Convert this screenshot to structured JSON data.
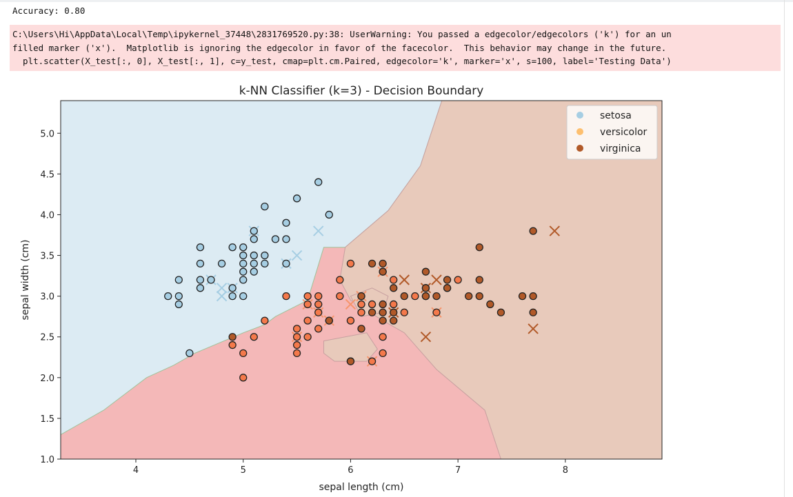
{
  "output": {
    "stdout": "Accuracy: 0.80",
    "stderr_lines": [
      "C:\\Users\\Hi\\AppData\\Local\\Temp\\ipykernel_37448\\2831769520.py:38: UserWarning: You passed a edgecolor/edgecolors ('k') for an un",
      "filled marker ('x').  Matplotlib is ignoring the edgecolor in favor of the facecolor.  This behavior may change in the future.",
      "  plt.scatter(X_test[:, 0], X_test[:, 1], c=y_test, cmap=plt.cm.Paired, edgecolor='k', marker='x', s=100, label='Testing Data')"
    ]
  },
  "chart_data": {
    "type": "scatter",
    "title": "k-NN Classifier (k=3) - Decision Boundary",
    "xlabel": "sepal length (cm)",
    "ylabel": "sepal width (cm)",
    "xlim": [
      3.3,
      8.9
    ],
    "ylim": [
      1.0,
      5.4
    ],
    "xticks": [
      4,
      5,
      6,
      7,
      8
    ],
    "yticks": [
      1.0,
      1.5,
      2.0,
      2.5,
      3.0,
      3.5,
      4.0,
      4.5,
      5.0
    ],
    "grid": false,
    "legend_position": "top-right",
    "colors": {
      "setosa": "#a6cee3",
      "versicolor": "#fdbf6f",
      "virginica": "#b15928",
      "region_setosa": "#dcebf3",
      "region_versicolor": "#f4b8b8",
      "region_virginica": "#e8cabb",
      "train_versicolor_fill": "#f4794b",
      "train_virginica_fill": "#b15928",
      "test_versicolor": "#f6946b"
    },
    "legend": [
      "setosa",
      "versicolor",
      "virginica"
    ],
    "regions": {
      "setosa": [
        [
          3.3,
          1.3
        ],
        [
          3.7,
          1.6
        ],
        [
          4.1,
          2.0
        ],
        [
          4.35,
          2.15
        ],
        [
          4.55,
          2.3
        ],
        [
          5.0,
          2.55
        ],
        [
          5.2,
          2.65
        ],
        [
          5.3,
          2.75
        ],
        [
          5.6,
          2.95
        ],
        [
          5.75,
          3.6
        ],
        [
          5.95,
          3.6
        ],
        [
          6.35,
          4.05
        ],
        [
          6.65,
          4.6
        ],
        [
          6.85,
          5.4
        ],
        [
          3.3,
          5.4
        ]
      ],
      "virginica": [
        [
          5.95,
          3.6
        ],
        [
          6.35,
          4.05
        ],
        [
          6.65,
          4.6
        ],
        [
          6.85,
          5.4
        ],
        [
          8.9,
          5.4
        ],
        [
          8.9,
          1.0
        ],
        [
          7.4,
          1.0
        ],
        [
          7.25,
          1.6
        ],
        [
          6.8,
          2.1
        ],
        [
          6.5,
          2.55
        ],
        [
          6.3,
          2.7
        ],
        [
          6.0,
          2.95
        ],
        [
          5.9,
          3.2
        ]
      ],
      "virginica_islands": [
        [
          [
            5.75,
            2.45
          ],
          [
            6.15,
            2.55
          ],
          [
            6.25,
            2.35
          ],
          [
            6.15,
            2.2
          ],
          [
            5.85,
            2.2
          ],
          [
            5.75,
            2.3
          ]
        ],
        [
          [
            6.0,
            3.0
          ],
          [
            6.2,
            3.1
          ],
          [
            6.35,
            3.0
          ],
          [
            6.3,
            2.8
          ],
          [
            6.1,
            2.75
          ]
        ]
      ]
    },
    "series": [
      {
        "name": "setosa",
        "marker": "o",
        "points": [
          [
            4.3,
            3.0
          ],
          [
            4.4,
            2.9
          ],
          [
            4.4,
            3.0
          ],
          [
            4.4,
            3.2
          ],
          [
            4.5,
            2.3
          ],
          [
            4.6,
            3.1
          ],
          [
            4.6,
            3.2
          ],
          [
            4.6,
            3.4
          ],
          [
            4.6,
            3.6
          ],
          [
            4.7,
            3.2
          ],
          [
            4.8,
            3.4
          ],
          [
            4.9,
            3.0
          ],
          [
            4.9,
            3.1
          ],
          [
            4.9,
            3.6
          ],
          [
            5.0,
            3.0
          ],
          [
            5.0,
            3.2
          ],
          [
            5.0,
            3.3
          ],
          [
            5.0,
            3.4
          ],
          [
            5.0,
            3.5
          ],
          [
            5.0,
            3.6
          ],
          [
            5.1,
            3.3
          ],
          [
            5.1,
            3.4
          ],
          [
            5.1,
            3.5
          ],
          [
            5.1,
            3.7
          ],
          [
            5.1,
            3.8
          ],
          [
            5.2,
            3.4
          ],
          [
            5.2,
            3.5
          ],
          [
            5.2,
            4.1
          ],
          [
            5.3,
            3.7
          ],
          [
            5.4,
            3.4
          ],
          [
            5.4,
            3.7
          ],
          [
            5.4,
            3.9
          ],
          [
            5.5,
            4.2
          ],
          [
            5.7,
            4.4
          ],
          [
            5.8,
            4.0
          ]
        ]
      },
      {
        "name": "versicolor",
        "marker": "o",
        "points": [
          [
            4.9,
            2.4
          ],
          [
            5.0,
            2.0
          ],
          [
            5.0,
            2.3
          ],
          [
            5.1,
            2.5
          ],
          [
            5.2,
            2.7
          ],
          [
            5.4,
            3.0
          ],
          [
            5.5,
            2.3
          ],
          [
            5.5,
            2.4
          ],
          [
            5.5,
            2.5
          ],
          [
            5.5,
            2.6
          ],
          [
            5.6,
            2.5
          ],
          [
            5.6,
            2.7
          ],
          [
            5.6,
            2.9
          ],
          [
            5.6,
            3.0
          ],
          [
            5.7,
            2.6
          ],
          [
            5.7,
            2.8
          ],
          [
            5.7,
            2.9
          ],
          [
            5.7,
            3.0
          ],
          [
            5.8,
            2.7
          ],
          [
            5.9,
            3.0
          ],
          [
            5.9,
            3.2
          ],
          [
            6.0,
            2.2
          ],
          [
            6.0,
            2.7
          ],
          [
            6.0,
            3.4
          ],
          [
            6.1,
            2.8
          ],
          [
            6.1,
            2.9
          ],
          [
            6.1,
            3.0
          ],
          [
            6.2,
            2.2
          ],
          [
            6.2,
            2.9
          ],
          [
            6.3,
            2.3
          ],
          [
            6.3,
            2.5
          ],
          [
            6.3,
            3.3
          ],
          [
            6.4,
            2.9
          ],
          [
            6.4,
            3.2
          ],
          [
            6.5,
            2.8
          ],
          [
            6.6,
            3.0
          ],
          [
            6.7,
            3.0
          ],
          [
            6.7,
            3.1
          ],
          [
            6.8,
            2.8
          ],
          [
            6.9,
            3.1
          ],
          [
            7.0,
            3.2
          ]
        ]
      },
      {
        "name": "virginica",
        "marker": "o",
        "points": [
          [
            4.9,
            2.5
          ],
          [
            5.8,
            2.7
          ],
          [
            6.0,
            2.2
          ],
          [
            6.1,
            2.6
          ],
          [
            6.1,
            3.0
          ],
          [
            6.2,
            2.8
          ],
          [
            6.2,
            3.4
          ],
          [
            6.3,
            2.7
          ],
          [
            6.3,
            2.8
          ],
          [
            6.3,
            2.9
          ],
          [
            6.3,
            3.3
          ],
          [
            6.3,
            3.4
          ],
          [
            6.4,
            2.7
          ],
          [
            6.4,
            2.8
          ],
          [
            6.4,
            3.1
          ],
          [
            6.5,
            3.0
          ],
          [
            6.7,
            3.0
          ],
          [
            6.7,
            3.1
          ],
          [
            6.7,
            3.3
          ],
          [
            6.8,
            3.0
          ],
          [
            6.9,
            3.1
          ],
          [
            6.9,
            3.2
          ],
          [
            7.1,
            3.0
          ],
          [
            7.2,
            3.0
          ],
          [
            7.2,
            3.2
          ],
          [
            7.2,
            3.6
          ],
          [
            7.3,
            2.9
          ],
          [
            7.4,
            2.8
          ],
          [
            7.6,
            3.0
          ],
          [
            7.7,
            2.8
          ],
          [
            7.7,
            3.0
          ],
          [
            7.7,
            3.8
          ]
        ]
      },
      {
        "name": "setosa-test",
        "marker": "x",
        "points": [
          [
            4.7,
            3.2
          ],
          [
            4.8,
            3.0
          ],
          [
            4.8,
            3.1
          ],
          [
            5.1,
            3.8
          ],
          [
            5.4,
            3.4
          ],
          [
            5.5,
            3.5
          ],
          [
            5.7,
            3.8
          ],
          [
            4.9,
            3.1
          ]
        ]
      },
      {
        "name": "versicolor-test",
        "marker": "x",
        "points": [
          [
            5.5,
            2.5
          ],
          [
            5.6,
            2.9
          ],
          [
            5.7,
            2.8
          ],
          [
            5.8,
            2.7
          ],
          [
            6.0,
            2.9
          ],
          [
            6.1,
            3.0
          ],
          [
            6.2,
            2.2
          ],
          [
            6.3,
            3.3
          ],
          [
            6.8,
            2.8
          ]
        ]
      },
      {
        "name": "virginica-test",
        "marker": "x",
        "points": [
          [
            6.4,
            2.8
          ],
          [
            6.5,
            3.2
          ],
          [
            6.7,
            2.5
          ],
          [
            6.7,
            3.1
          ],
          [
            6.8,
            3.2
          ],
          [
            7.7,
            2.6
          ],
          [
            7.9,
            3.8
          ]
        ]
      }
    ]
  }
}
